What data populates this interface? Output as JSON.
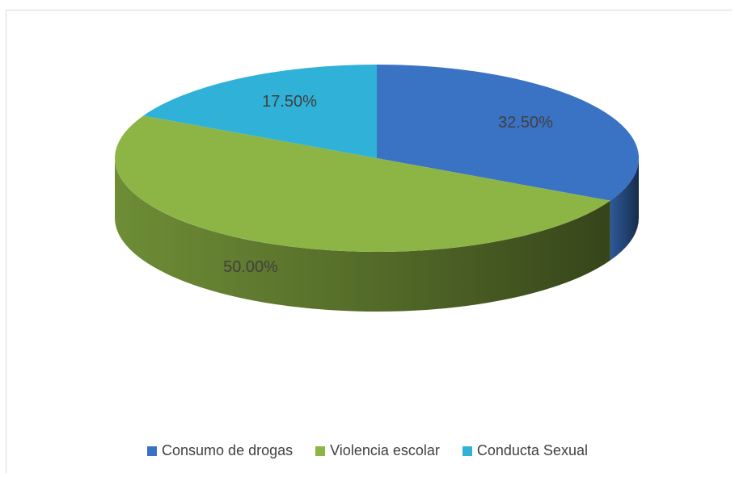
{
  "chart_data": {
    "type": "pie",
    "style": "3d",
    "title": "",
    "categories": [
      "Consumo de drogas",
      "Violencia escolar",
      "Conducta Sexual"
    ],
    "values": [
      32.5,
      50.0,
      17.5
    ],
    "data_labels": [
      "32.50%",
      "50.00%",
      "17.50%"
    ],
    "colors": [
      "#3a72c4",
      "#8db545",
      "#2fb1d8"
    ],
    "legend_position": "bottom"
  }
}
